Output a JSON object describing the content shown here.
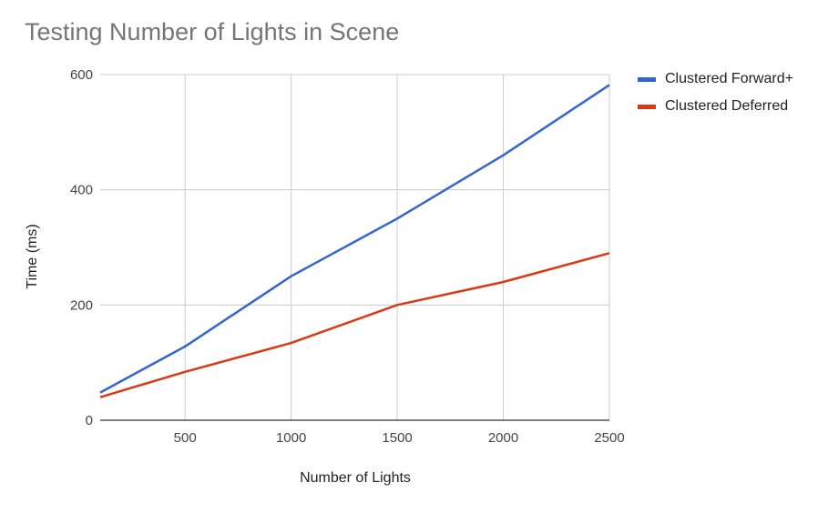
{
  "chart_data": {
    "type": "line",
    "title": "Testing Number of Lights in Scene",
    "xlabel": "Number of Lights",
    "ylabel": "Time (ms)",
    "xlim": [
      100,
      2500
    ],
    "ylim": [
      0,
      600
    ],
    "x_ticks": [
      "500",
      "1000",
      "1500",
      "2000",
      "2500"
    ],
    "y_ticks": [
      "0",
      "200",
      "400",
      "600"
    ],
    "grid": true,
    "legend_position": "right",
    "x": [
      100,
      500,
      1000,
      1500,
      2000,
      2500
    ],
    "series": [
      {
        "name": "Clustered Forward+",
        "color": "#3366cc",
        "values": [
          48,
          128,
          250,
          350,
          460,
          582
        ]
      },
      {
        "name": "Clustered Deferred",
        "color": "#dc3912",
        "values": [
          40,
          84,
          134,
          200,
          240,
          290
        ]
      }
    ]
  }
}
